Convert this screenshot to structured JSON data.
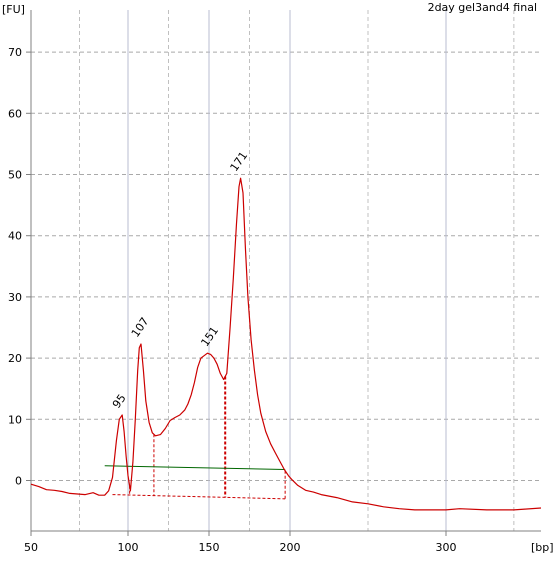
{
  "chart_data": {
    "type": "line",
    "title": "2day gel3and4 final",
    "ylabel": "[FU]",
    "xlabel": "[bp]",
    "x_tick_labels": [
      "50",
      "100",
      "150",
      "200",
      "300"
    ],
    "y_tick_labels": [
      "0",
      "10",
      "20",
      "30",
      "40",
      "50",
      "60",
      "70"
    ],
    "x_ticks_bp": [
      50,
      100,
      150,
      200,
      300
    ],
    "ylim": [
      -8,
      77
    ],
    "grid": true,
    "peak_labels": [
      {
        "text": "95",
        "x_bp": 97,
        "y": 10.7
      },
      {
        "text": "107",
        "x_bp": 108,
        "y": 22.3
      },
      {
        "text": "151",
        "x_bp": 151,
        "y": 20.8
      },
      {
        "text": "171",
        "x_bp": 169,
        "y": 49.4
      }
    ],
    "series": [
      {
        "color": "#cc0000",
        "points": [
          [
            50,
            -0.6
          ],
          [
            54,
            -1.0
          ],
          [
            58,
            -1.5
          ],
          [
            62,
            -1.6
          ],
          [
            66,
            -1.8
          ],
          [
            70,
            -2.1
          ],
          [
            74,
            -2.2
          ],
          [
            78,
            -2.3
          ],
          [
            82,
            -2.0
          ],
          [
            85,
            -2.4
          ],
          [
            88,
            -2.4
          ],
          [
            90,
            -1.7
          ],
          [
            92,
            0.5
          ],
          [
            94,
            6.5
          ],
          [
            95.5,
            10.0
          ],
          [
            97,
            10.7
          ],
          [
            98,
            8.0
          ],
          [
            99,
            4.0
          ],
          [
            100,
            0.8
          ],
          [
            101.5,
            -1.7
          ],
          [
            103,
            3.0
          ],
          [
            104.5,
            10.0
          ],
          [
            106,
            18.0
          ],
          [
            107,
            21.7
          ],
          [
            108,
            22.3
          ],
          [
            109.5,
            18.0
          ],
          [
            111,
            13.0
          ],
          [
            113,
            9.5
          ],
          [
            115,
            7.8
          ],
          [
            117,
            7.3
          ],
          [
            120,
            7.5
          ],
          [
            123,
            8.5
          ],
          [
            126,
            9.8
          ],
          [
            129,
            10.3
          ],
          [
            132,
            10.7
          ],
          [
            135,
            11.5
          ],
          [
            137,
            12.5
          ],
          [
            139,
            14.0
          ],
          [
            141,
            16.0
          ],
          [
            143,
            18.5
          ],
          [
            145,
            20.0
          ],
          [
            147,
            20.4
          ],
          [
            149,
            20.8
          ],
          [
            151,
            20.6
          ],
          [
            153,
            20.0
          ],
          [
            155,
            19.0
          ],
          [
            157,
            17.5
          ],
          [
            159,
            16.5
          ],
          [
            161,
            17.5
          ],
          [
            163,
            25.0
          ],
          [
            165,
            33.0
          ],
          [
            167,
            42.0
          ],
          [
            168.5,
            48.0
          ],
          [
            169.5,
            49.4
          ],
          [
            171,
            47.0
          ],
          [
            172.5,
            38.0
          ],
          [
            174,
            30.0
          ],
          [
            176,
            23.0
          ],
          [
            178,
            18.0
          ],
          [
            180,
            14.0
          ],
          [
            182,
            11.0
          ],
          [
            185,
            8.0
          ],
          [
            188,
            6.0
          ],
          [
            191,
            4.5
          ],
          [
            194,
            3.0
          ],
          [
            196.5,
            1.8
          ],
          [
            199,
            0.8
          ],
          [
            201,
            0.2
          ],
          [
            205,
            -0.8
          ],
          [
            210,
            -1.6
          ],
          [
            215,
            -1.9
          ],
          [
            220,
            -2.3
          ],
          [
            230,
            -2.8
          ],
          [
            240,
            -3.5
          ],
          [
            250,
            -3.8
          ],
          [
            260,
            -4.3
          ],
          [
            270,
            -4.6
          ],
          [
            280,
            -4.8
          ],
          [
            290,
            -4.8
          ],
          [
            300,
            -4.8
          ],
          [
            310,
            -4.6
          ],
          [
            330,
            -4.8
          ],
          [
            350,
            -4.8
          ],
          [
            370,
            -4.5
          ]
        ]
      }
    ],
    "baseline": {
      "color": "#006600",
      "from": {
        "x_bp": 88,
        "y": 2.4
      },
      "to": {
        "x_bp": 197,
        "y": 1.8
      }
    },
    "region_lines": {
      "color": "#cc0000",
      "markers_bp": [
        101,
        116,
        160,
        197
      ],
      "bottom_from": {
        "x_bp": 92,
        "y": -2.3
      },
      "bottom_to": {
        "x_bp": 197,
        "y": -3.0
      }
    }
  }
}
